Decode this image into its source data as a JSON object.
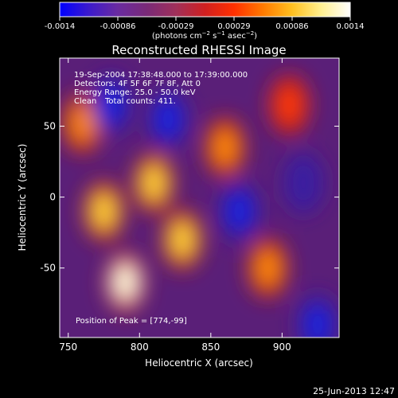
{
  "chart_data": {
    "type": "heatmap",
    "title": "Reconstructed RHESSI Image",
    "xlabel": "Heliocentric X (arcsec)",
    "ylabel": "Heliocentric Y (arcsec)",
    "xlim": [
      744,
      940
    ],
    "ylim": [
      -99,
      98
    ],
    "x_ticks": [
      "750",
      "800",
      "850",
      "900"
    ],
    "y_ticks": [
      "-50",
      "0",
      "50"
    ],
    "colorbar": {
      "range": [
        -0.0014,
        0.0014
      ],
      "tick_labels": [
        "-0.0014",
        "-0.00086",
        "-0.00029",
        "0.00029",
        "0.00086",
        "0.0014"
      ],
      "colors": [
        "#0000ff",
        "#3c1acc",
        "#6a2ba0",
        "#7a2a78",
        "#a0305a",
        "#d02020",
        "#ff3000",
        "#ff7a00",
        "#ffc020",
        "#fff090",
        "#ffffff"
      ]
    },
    "annotations": {
      "time_range": "19-Sep-2004 17:38:48.000 to 17:39:00.000",
      "detectors": "Detectors: 4F 5F 6F 7F 8F, Att 0",
      "energy": "Energy Range: 25.0 - 50.0 keV",
      "clean_prefix": "Clean",
      "total_counts": "Total counts: 411.",
      "peak_position": "Position of Peak = [774,-99]"
    },
    "peak": [
      774,
      -99
    ],
    "intensity_bands": [
      {
        "x": 760,
        "y": 52,
        "level": 0.8
      },
      {
        "x": 775,
        "y": -10,
        "level": 0.9
      },
      {
        "x": 790,
        "y": -60,
        "level": 1.0
      },
      {
        "x": 810,
        "y": 10,
        "level": 0.9
      },
      {
        "x": 830,
        "y": -30,
        "level": 0.85
      },
      {
        "x": 860,
        "y": 35,
        "level": 0.8
      },
      {
        "x": 890,
        "y": -50,
        "level": 0.75
      },
      {
        "x": 905,
        "y": 65,
        "level": 0.6
      },
      {
        "x": 820,
        "y": 55,
        "level": -0.9
      },
      {
        "x": 780,
        "y": 65,
        "level": -0.8
      },
      {
        "x": 870,
        "y": -10,
        "level": -0.7
      },
      {
        "x": 925,
        "y": -90,
        "level": -0.9
      },
      {
        "x": 915,
        "y": 10,
        "level": -0.6
      }
    ]
  },
  "footer": {
    "timestamp": "25-Jun-2013 12:47"
  }
}
